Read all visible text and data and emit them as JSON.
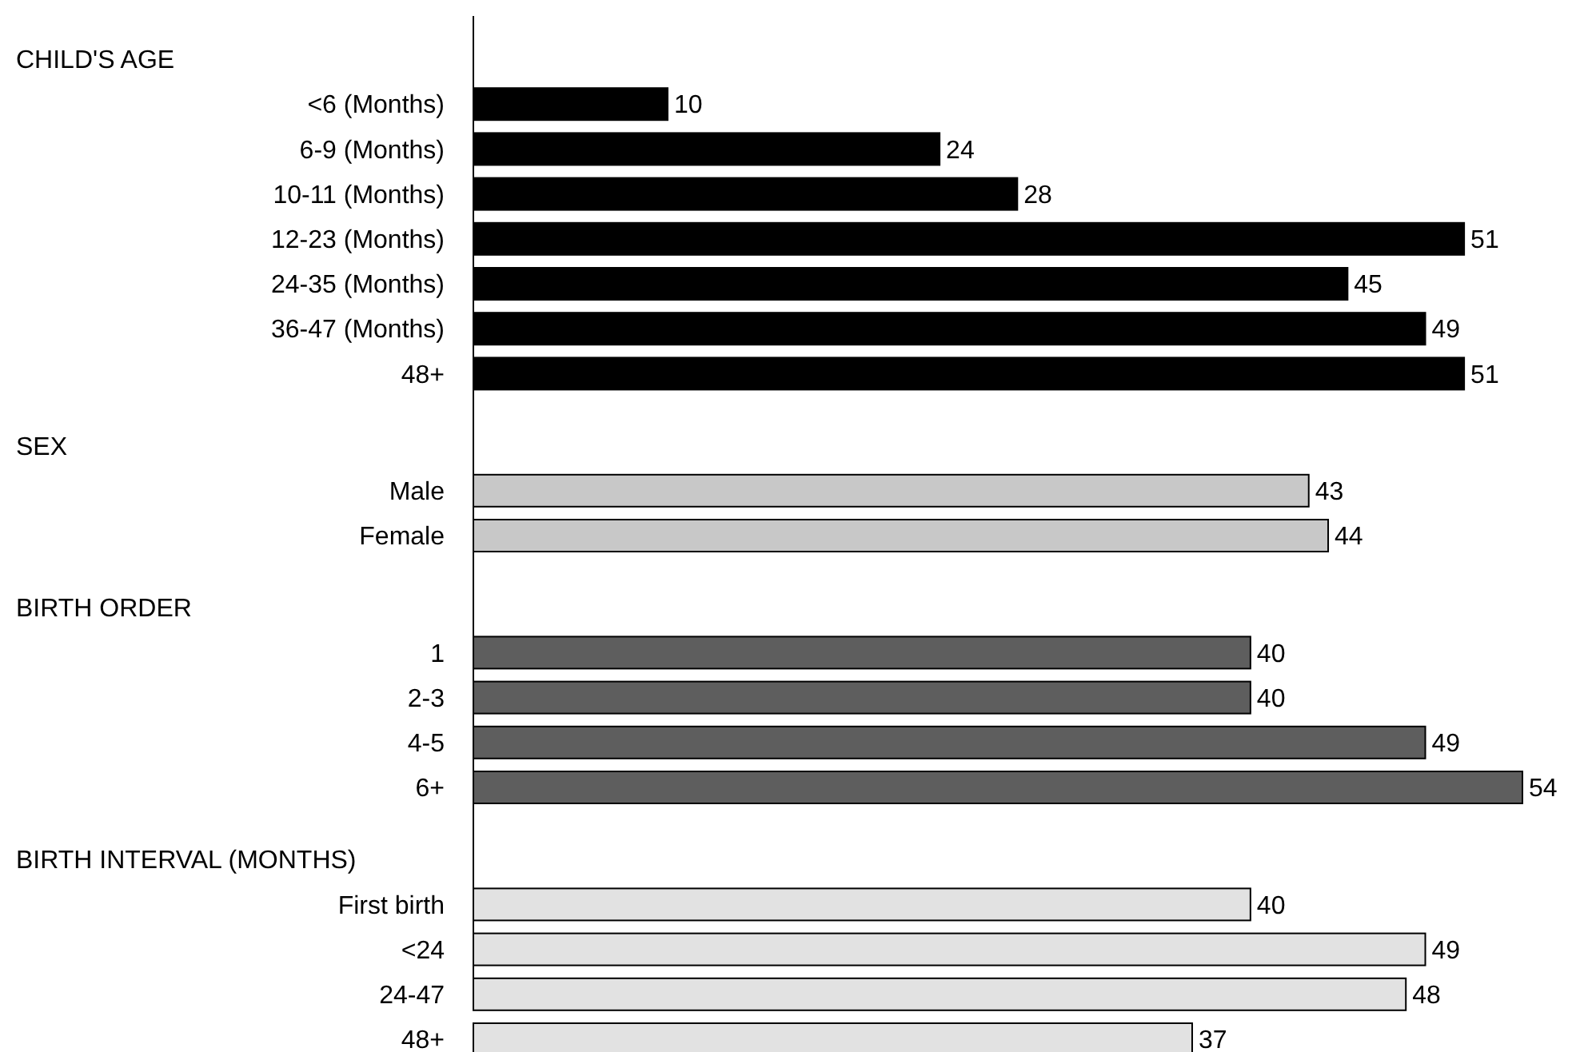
{
  "chart_data": {
    "type": "bar",
    "orientation": "horizontal",
    "data_labels": true,
    "annotations": [
      "CHILD'S AGE",
      "SEX",
      "BIRTH ORDER",
      "BIRTH INTERVAL (MONTHS)"
    ],
    "categories": [
      null,
      "<6 (Months)",
      "6-9 (Months)",
      "10-11 (Months)",
      "12-23 (Months)",
      "24-35 (Months)",
      "36-47 (Months)",
      "48+",
      null,
      "Male",
      "Female",
      null,
      "1",
      "2-3",
      "4-5",
      "6+",
      null,
      "First birth",
      "<24",
      "24-47",
      "48+"
    ],
    "values": [
      null,
      10,
      24,
      28,
      51,
      45,
      49,
      51,
      null,
      43,
      44,
      null,
      40,
      40,
      49,
      54,
      null,
      40,
      49,
      48,
      37
    ],
    "colors": [
      null,
      "#000000",
      "#000000",
      "#000000",
      "#000000",
      "#000000",
      "#000000",
      "#000000",
      null,
      "#c8c8c8",
      "#c8c8c8",
      null,
      "#5e5e5e",
      "#5e5e5e",
      "#5e5e5e",
      "#5e5e5e",
      null,
      "#e2e2e2",
      "#e2e2e2",
      "#e2e2e2",
      "#e2e2e2"
    ]
  }
}
